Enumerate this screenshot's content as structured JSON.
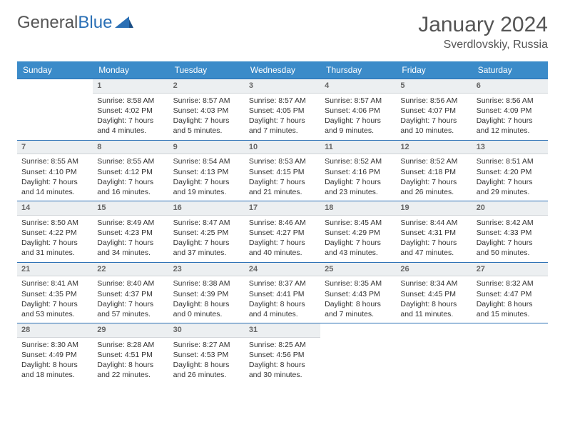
{
  "logo": {
    "text_gray": "General",
    "text_blue": "Blue"
  },
  "header": {
    "month_title": "January 2024",
    "location": "Sverdlovskiy, Russia"
  },
  "colors": {
    "header_bg": "#3b8bc9",
    "header_text": "#ffffff",
    "row_border": "#2a6fb5",
    "daynum_bg": "#eceff1",
    "body_bg": "#ffffff",
    "text": "#333333"
  },
  "weekdays": [
    "Sunday",
    "Monday",
    "Tuesday",
    "Wednesday",
    "Thursday",
    "Friday",
    "Saturday"
  ],
  "weeks": [
    [
      null,
      {
        "n": "1",
        "sr": "Sunrise: 8:58 AM",
        "ss": "Sunset: 4:02 PM",
        "d1": "Daylight: 7 hours",
        "d2": "and 4 minutes."
      },
      {
        "n": "2",
        "sr": "Sunrise: 8:57 AM",
        "ss": "Sunset: 4:03 PM",
        "d1": "Daylight: 7 hours",
        "d2": "and 5 minutes."
      },
      {
        "n": "3",
        "sr": "Sunrise: 8:57 AM",
        "ss": "Sunset: 4:05 PM",
        "d1": "Daylight: 7 hours",
        "d2": "and 7 minutes."
      },
      {
        "n": "4",
        "sr": "Sunrise: 8:57 AM",
        "ss": "Sunset: 4:06 PM",
        "d1": "Daylight: 7 hours",
        "d2": "and 9 minutes."
      },
      {
        "n": "5",
        "sr": "Sunrise: 8:56 AM",
        "ss": "Sunset: 4:07 PM",
        "d1": "Daylight: 7 hours",
        "d2": "and 10 minutes."
      },
      {
        "n": "6",
        "sr": "Sunrise: 8:56 AM",
        "ss": "Sunset: 4:09 PM",
        "d1": "Daylight: 7 hours",
        "d2": "and 12 minutes."
      }
    ],
    [
      {
        "n": "7",
        "sr": "Sunrise: 8:55 AM",
        "ss": "Sunset: 4:10 PM",
        "d1": "Daylight: 7 hours",
        "d2": "and 14 minutes."
      },
      {
        "n": "8",
        "sr": "Sunrise: 8:55 AM",
        "ss": "Sunset: 4:12 PM",
        "d1": "Daylight: 7 hours",
        "d2": "and 16 minutes."
      },
      {
        "n": "9",
        "sr": "Sunrise: 8:54 AM",
        "ss": "Sunset: 4:13 PM",
        "d1": "Daylight: 7 hours",
        "d2": "and 19 minutes."
      },
      {
        "n": "10",
        "sr": "Sunrise: 8:53 AM",
        "ss": "Sunset: 4:15 PM",
        "d1": "Daylight: 7 hours",
        "d2": "and 21 minutes."
      },
      {
        "n": "11",
        "sr": "Sunrise: 8:52 AM",
        "ss": "Sunset: 4:16 PM",
        "d1": "Daylight: 7 hours",
        "d2": "and 23 minutes."
      },
      {
        "n": "12",
        "sr": "Sunrise: 8:52 AM",
        "ss": "Sunset: 4:18 PM",
        "d1": "Daylight: 7 hours",
        "d2": "and 26 minutes."
      },
      {
        "n": "13",
        "sr": "Sunrise: 8:51 AM",
        "ss": "Sunset: 4:20 PM",
        "d1": "Daylight: 7 hours",
        "d2": "and 29 minutes."
      }
    ],
    [
      {
        "n": "14",
        "sr": "Sunrise: 8:50 AM",
        "ss": "Sunset: 4:22 PM",
        "d1": "Daylight: 7 hours",
        "d2": "and 31 minutes."
      },
      {
        "n": "15",
        "sr": "Sunrise: 8:49 AM",
        "ss": "Sunset: 4:23 PM",
        "d1": "Daylight: 7 hours",
        "d2": "and 34 minutes."
      },
      {
        "n": "16",
        "sr": "Sunrise: 8:47 AM",
        "ss": "Sunset: 4:25 PM",
        "d1": "Daylight: 7 hours",
        "d2": "and 37 minutes."
      },
      {
        "n": "17",
        "sr": "Sunrise: 8:46 AM",
        "ss": "Sunset: 4:27 PM",
        "d1": "Daylight: 7 hours",
        "d2": "and 40 minutes."
      },
      {
        "n": "18",
        "sr": "Sunrise: 8:45 AM",
        "ss": "Sunset: 4:29 PM",
        "d1": "Daylight: 7 hours",
        "d2": "and 43 minutes."
      },
      {
        "n": "19",
        "sr": "Sunrise: 8:44 AM",
        "ss": "Sunset: 4:31 PM",
        "d1": "Daylight: 7 hours",
        "d2": "and 47 minutes."
      },
      {
        "n": "20",
        "sr": "Sunrise: 8:42 AM",
        "ss": "Sunset: 4:33 PM",
        "d1": "Daylight: 7 hours",
        "d2": "and 50 minutes."
      }
    ],
    [
      {
        "n": "21",
        "sr": "Sunrise: 8:41 AM",
        "ss": "Sunset: 4:35 PM",
        "d1": "Daylight: 7 hours",
        "d2": "and 53 minutes."
      },
      {
        "n": "22",
        "sr": "Sunrise: 8:40 AM",
        "ss": "Sunset: 4:37 PM",
        "d1": "Daylight: 7 hours",
        "d2": "and 57 minutes."
      },
      {
        "n": "23",
        "sr": "Sunrise: 8:38 AM",
        "ss": "Sunset: 4:39 PM",
        "d1": "Daylight: 8 hours",
        "d2": "and 0 minutes."
      },
      {
        "n": "24",
        "sr": "Sunrise: 8:37 AM",
        "ss": "Sunset: 4:41 PM",
        "d1": "Daylight: 8 hours",
        "d2": "and 4 minutes."
      },
      {
        "n": "25",
        "sr": "Sunrise: 8:35 AM",
        "ss": "Sunset: 4:43 PM",
        "d1": "Daylight: 8 hours",
        "d2": "and 7 minutes."
      },
      {
        "n": "26",
        "sr": "Sunrise: 8:34 AM",
        "ss": "Sunset: 4:45 PM",
        "d1": "Daylight: 8 hours",
        "d2": "and 11 minutes."
      },
      {
        "n": "27",
        "sr": "Sunrise: 8:32 AM",
        "ss": "Sunset: 4:47 PM",
        "d1": "Daylight: 8 hours",
        "d2": "and 15 minutes."
      }
    ],
    [
      {
        "n": "28",
        "sr": "Sunrise: 8:30 AM",
        "ss": "Sunset: 4:49 PM",
        "d1": "Daylight: 8 hours",
        "d2": "and 18 minutes."
      },
      {
        "n": "29",
        "sr": "Sunrise: 8:28 AM",
        "ss": "Sunset: 4:51 PM",
        "d1": "Daylight: 8 hours",
        "d2": "and 22 minutes."
      },
      {
        "n": "30",
        "sr": "Sunrise: 8:27 AM",
        "ss": "Sunset: 4:53 PM",
        "d1": "Daylight: 8 hours",
        "d2": "and 26 minutes."
      },
      {
        "n": "31",
        "sr": "Sunrise: 8:25 AM",
        "ss": "Sunset: 4:56 PM",
        "d1": "Daylight: 8 hours",
        "d2": "and 30 minutes."
      },
      null,
      null,
      null
    ]
  ]
}
